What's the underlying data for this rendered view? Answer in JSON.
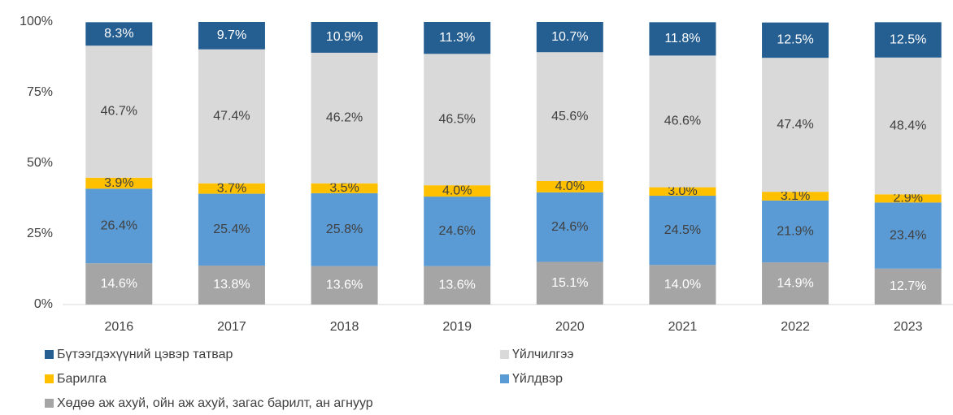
{
  "chart_data": {
    "type": "stacked_bar",
    "categories": [
      "2016",
      "2017",
      "2018",
      "2019",
      "2020",
      "2021",
      "2022",
      "2023"
    ],
    "ylim": [
      0,
      100
    ],
    "yticks": [
      {
        "value": 0,
        "label": "0%"
      },
      {
        "value": 25,
        "label": "25%"
      },
      {
        "value": 50,
        "label": "50%"
      },
      {
        "value": 75,
        "label": "75%"
      },
      {
        "value": 100,
        "label": "100%"
      }
    ],
    "series": [
      {
        "name": "Хөдөө аж ахуй, ойн аж ахуй, загас барилт, ан агнуур",
        "color": "#a5a5a5",
        "label_color": "#ffffff",
        "values": [
          14.6,
          13.8,
          13.6,
          13.6,
          15.1,
          14.0,
          14.9,
          12.7
        ],
        "value_labels": [
          "14.6%",
          "13.8%",
          "13.6%",
          "13.6%",
          "15.1%",
          "14.0%",
          "14.9%",
          "12.7%"
        ]
      },
      {
        "name": "Үйлдвэр",
        "color": "#5b9bd5",
        "label_color": "#404040",
        "values": [
          26.4,
          25.4,
          25.8,
          24.6,
          24.6,
          24.5,
          21.9,
          23.4
        ],
        "value_labels": [
          "26.4%",
          "25.4%",
          "25.8%",
          "24.6%",
          "24.6%",
          "24.5%",
          "21.9%",
          "23.4%"
        ]
      },
      {
        "name": "Барилга",
        "color": "#ffc000",
        "label_color": "#404040",
        "values": [
          3.9,
          3.7,
          3.5,
          4.0,
          4.0,
          3.0,
          3.1,
          2.9
        ],
        "value_labels": [
          "3.9%",
          "3.7%",
          "3.5%",
          "4.0%",
          "4.0%",
          "3.0%",
          "3.1%",
          "2.9%"
        ]
      },
      {
        "name": "Үйлчилгээ",
        "color": "#d9d9d9",
        "label_color": "#404040",
        "values": [
          46.7,
          47.4,
          46.2,
          46.5,
          45.6,
          46.6,
          47.4,
          48.4
        ],
        "value_labels": [
          "46.7%",
          "47.4%",
          "46.2%",
          "46.5%",
          "45.6%",
          "46.6%",
          "47.4%",
          "48.4%"
        ]
      },
      {
        "name": "Бүтээгдэхүүний цэвэр татвар",
        "color": "#255e91",
        "label_color": "#ffffff",
        "values": [
          8.3,
          9.7,
          10.9,
          11.3,
          10.7,
          11.8,
          12.5,
          12.5
        ],
        "value_labels": [
          "8.3%",
          "9.7%",
          "10.9%",
          "11.3%",
          "10.7%",
          "11.8%",
          "12.5%",
          "12.5%"
        ]
      }
    ]
  }
}
